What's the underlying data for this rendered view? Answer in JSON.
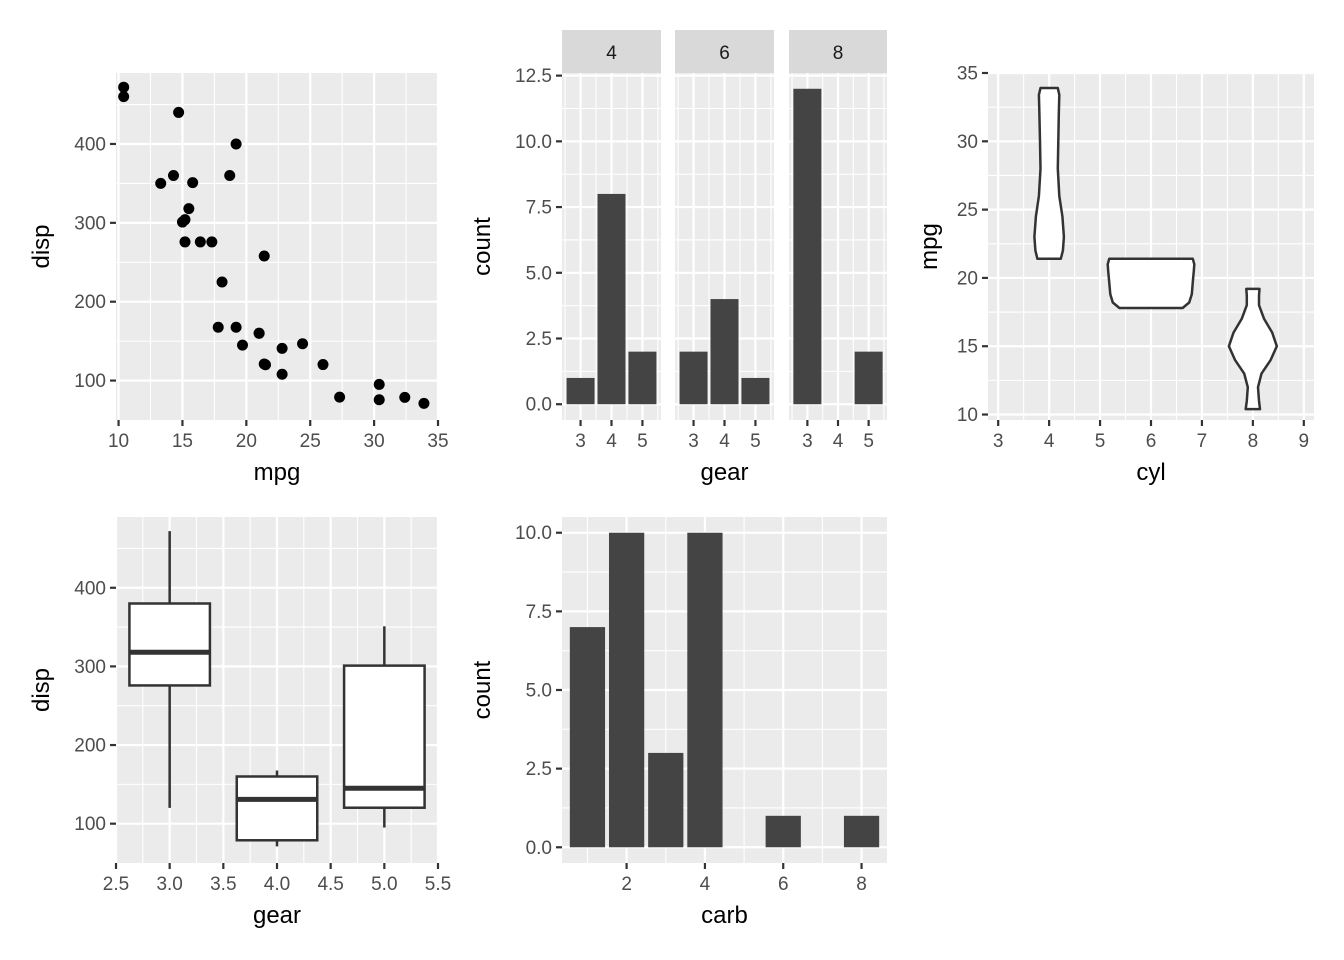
{
  "chart_data": [
    {
      "type": "scatter",
      "xlabel": "mpg",
      "ylabel": "disp",
      "xlim": [
        9.8,
        35
      ],
      "ylim": [
        50,
        490
      ],
      "x_ticks": [
        10,
        15,
        20,
        25,
        30,
        35
      ],
      "y_ticks": [
        100,
        200,
        300,
        400
      ],
      "points": [
        [
          21.0,
          160
        ],
        [
          21.0,
          160
        ],
        [
          22.8,
          108
        ],
        [
          21.4,
          258
        ],
        [
          18.7,
          360
        ],
        [
          18.1,
          225
        ],
        [
          14.3,
          360
        ],
        [
          24.4,
          146.7
        ],
        [
          22.8,
          140.8
        ],
        [
          19.2,
          167.6
        ],
        [
          17.8,
          167.6
        ],
        [
          16.4,
          275.8
        ],
        [
          17.3,
          275.8
        ],
        [
          15.2,
          275.8
        ],
        [
          10.4,
          472
        ],
        [
          10.4,
          460
        ],
        [
          14.7,
          440
        ],
        [
          32.4,
          78.7
        ],
        [
          30.4,
          75.7
        ],
        [
          33.9,
          71.1
        ],
        [
          21.5,
          120.1
        ],
        [
          15.5,
          318
        ],
        [
          15.2,
          304
        ],
        [
          13.3,
          350
        ],
        [
          19.2,
          400
        ],
        [
          27.3,
          79
        ],
        [
          26.0,
          120.3
        ],
        [
          30.4,
          95.1
        ],
        [
          15.8,
          351
        ],
        [
          19.7,
          145
        ],
        [
          15.0,
          301
        ],
        [
          21.4,
          121
        ]
      ]
    },
    {
      "type": "bar",
      "facet_by": "cyl",
      "xlabel": "gear",
      "ylabel": "count",
      "ylim": [
        -0.6,
        12.6
      ],
      "y_ticks": [
        "0.0",
        "2.5",
        "5.0",
        "7.5",
        "10.0",
        "12.5"
      ],
      "categories": [
        "3",
        "4",
        "5"
      ],
      "facets": [
        {
          "label": "4",
          "values": [
            1,
            8,
            2
          ]
        },
        {
          "label": "6",
          "values": [
            2,
            4,
            1
          ]
        },
        {
          "label": "8",
          "values": [
            12,
            0,
            2
          ]
        }
      ]
    },
    {
      "type": "violin",
      "xlabel": "cyl",
      "ylabel": "mpg",
      "xlim": [
        2.8,
        9.2
      ],
      "ylim": [
        9.6,
        35.0
      ],
      "x_ticks": [
        3,
        4,
        5,
        6,
        7,
        8,
        9
      ],
      "y_ticks": [
        10,
        15,
        20,
        25,
        30,
        35
      ],
      "violins": [
        {
          "cyl": 4,
          "profile": [
            [
              21.4,
              0.23
            ],
            [
              22.0,
              0.27
            ],
            [
              23.0,
              0.29
            ],
            [
              24.5,
              0.26
            ],
            [
              26.0,
              0.2
            ],
            [
              28.0,
              0.17
            ],
            [
              30.0,
              0.18
            ],
            [
              32.0,
              0.19
            ],
            [
              33.4,
              0.2
            ],
            [
              33.9,
              0.17
            ]
          ]
        },
        {
          "cyl": 6,
          "profile": [
            [
              17.8,
              0.62
            ],
            [
              18.2,
              0.75
            ],
            [
              18.8,
              0.8
            ],
            [
              19.7,
              0.82
            ],
            [
              20.5,
              0.84
            ],
            [
              21.0,
              0.85
            ],
            [
              21.4,
              0.82
            ]
          ]
        },
        {
          "cyl": 8,
          "profile": [
            [
              10.4,
              0.14
            ],
            [
              11.0,
              0.12
            ],
            [
              12.0,
              0.1
            ],
            [
              13.0,
              0.17
            ],
            [
              14.0,
              0.35
            ],
            [
              15.0,
              0.47
            ],
            [
              16.0,
              0.38
            ],
            [
              17.0,
              0.22
            ],
            [
              18.0,
              0.12
            ],
            [
              18.7,
              0.12
            ],
            [
              19.2,
              0.13
            ]
          ]
        }
      ]
    },
    {
      "type": "boxplot",
      "xlabel": "gear",
      "ylabel": "disp",
      "xlim": [
        2.5,
        5.5
      ],
      "ylim": [
        50,
        490
      ],
      "x_ticks": [
        "2.5",
        "3.0",
        "3.5",
        "4.0",
        "4.5",
        "5.0",
        "5.5"
      ],
      "y_ticks": [
        100,
        200,
        300,
        400
      ],
      "boxes": [
        {
          "x": 3,
          "min": 120.1,
          "q1": 275.8,
          "median": 318,
          "q3": 380,
          "max": 472
        },
        {
          "x": 4,
          "min": 71.1,
          "q1": 78.9,
          "median": 130.9,
          "q3": 160,
          "max": 167.6
        },
        {
          "x": 5,
          "min": 95.1,
          "q1": 120.3,
          "median": 145,
          "q3": 301,
          "max": 351
        }
      ]
    },
    {
      "type": "bar",
      "xlabel": "carb",
      "ylabel": "count",
      "xlim": [
        0.35,
        8.65
      ],
      "ylim": [
        -0.5,
        10.5
      ],
      "x_ticks": [
        2,
        4,
        6,
        8
      ],
      "y_ticks": [
        "0.0",
        "2.5",
        "5.0",
        "7.5",
        "10.0"
      ],
      "categories": [
        1,
        2,
        3,
        4,
        6,
        8
      ],
      "values": [
        7,
        10,
        3,
        10,
        1,
        1
      ]
    }
  ]
}
